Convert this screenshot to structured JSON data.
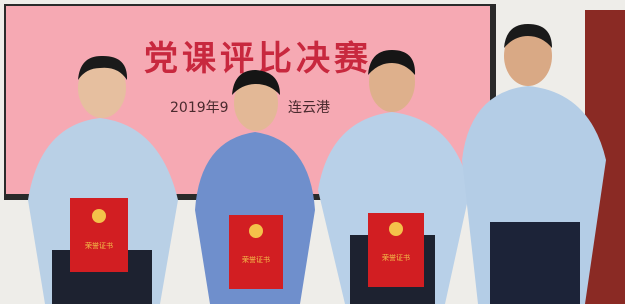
{
  "banner": {
    "title": "党课评比决赛",
    "date": "2019年9",
    "place": "连云港"
  },
  "certificates": [
    "荣誉证书",
    "荣誉证书",
    "荣誉证书"
  ]
}
